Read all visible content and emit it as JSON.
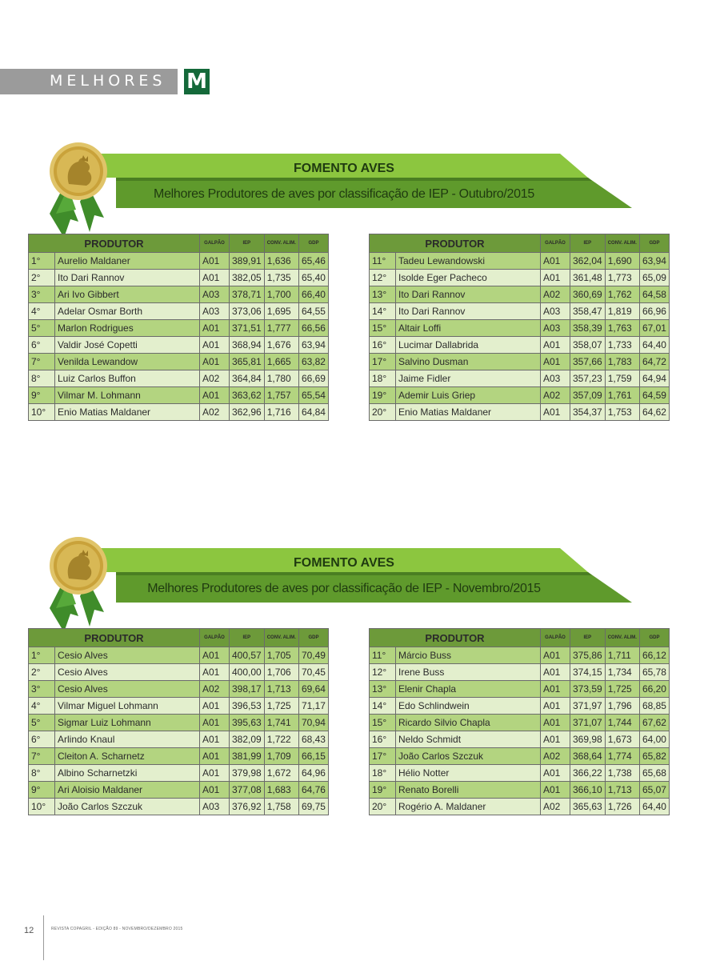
{
  "header": {
    "section_label": "MELHORES",
    "logo_letter": "M"
  },
  "colors": {
    "brand_green": "#14693a",
    "banner_light": "#8cc63f",
    "banner_dark": "#4f8a2b",
    "row_odd": "#b3d480",
    "row_even": "#e3efcd",
    "table_header": "#6d9a3a",
    "medal_gold": "#c9a23a"
  },
  "icons": {
    "medal": "medal-rooster-icon"
  },
  "columns": {
    "produtor": "PRODUTOR",
    "galpao": "GALPÃO",
    "iep": "IEP",
    "conv": "CONV. ALIM.",
    "gdp": "GDP"
  },
  "sections": [
    {
      "title": "FOMENTO AVES",
      "subtitle": "Melhores Produtores de aves por classificação de IEP - Outubro/2015",
      "left": [
        {
          "pos": "1°",
          "name": "Aurelio Maldaner",
          "galpao": "A01",
          "iep": "389,91",
          "conv": "1,636",
          "gdp": "65,46"
        },
        {
          "pos": "2°",
          "name": "Ito Dari Rannov",
          "galpao": "A01",
          "iep": "382,05",
          "conv": "1,735",
          "gdp": "65,40"
        },
        {
          "pos": "3°",
          "name": "Ari Ivo Gibbert",
          "galpao": "A03",
          "iep": "378,71",
          "conv": "1,700",
          "gdp": "66,40"
        },
        {
          "pos": "4°",
          "name": "Adelar Osmar Borth",
          "galpao": "A03",
          "iep": "373,06",
          "conv": "1,695",
          "gdp": "64,55"
        },
        {
          "pos": "5°",
          "name": "Marlon Rodrigues",
          "galpao": "A01",
          "iep": "371,51",
          "conv": "1,777",
          "gdp": "66,56"
        },
        {
          "pos": "6°",
          "name": "Valdir José Copetti",
          "galpao": "A01",
          "iep": "368,94",
          "conv": "1,676",
          "gdp": "63,94"
        },
        {
          "pos": "7°",
          "name": "Venilda Lewandow",
          "galpao": "A01",
          "iep": "365,81",
          "conv": "1,665",
          "gdp": "63,82"
        },
        {
          "pos": "8°",
          "name": "Luiz Carlos Buffon",
          "galpao": "A02",
          "iep": "364,84",
          "conv": "1,780",
          "gdp": "66,69"
        },
        {
          "pos": "9°",
          "name": "Vilmar M. Lohmann",
          "galpao": "A01",
          "iep": "363,62",
          "conv": "1,757",
          "gdp": "65,54"
        },
        {
          "pos": "10°",
          "name": "Enio Matias Maldaner",
          "galpao": "A02",
          "iep": "362,96",
          "conv": "1,716",
          "gdp": "64,84"
        }
      ],
      "right": [
        {
          "pos": "11°",
          "name": "Tadeu Lewandowski",
          "galpao": "A01",
          "iep": "362,04",
          "conv": "1,690",
          "gdp": "63,94"
        },
        {
          "pos": "12°",
          "name": "Isolde Eger Pacheco",
          "galpao": "A01",
          "iep": "361,48",
          "conv": "1,773",
          "gdp": "65,09"
        },
        {
          "pos": "13°",
          "name": "Ito Dari Rannov",
          "galpao": "A02",
          "iep": "360,69",
          "conv": "1,762",
          "gdp": "64,58"
        },
        {
          "pos": "14°",
          "name": "Ito Dari Rannov",
          "galpao": "A03",
          "iep": "358,47",
          "conv": "1,819",
          "gdp": "66,96"
        },
        {
          "pos": "15°",
          "name": "Altair Loffi",
          "galpao": "A03",
          "iep": "358,39",
          "conv": "1,763",
          "gdp": "67,01"
        },
        {
          "pos": "16°",
          "name": "Lucimar Dallabrida",
          "galpao": "A01",
          "iep": "358,07",
          "conv": "1,733",
          "gdp": "64,40"
        },
        {
          "pos": "17°",
          "name": "Salvino Dusman",
          "galpao": "A01",
          "iep": "357,66",
          "conv": "1,783",
          "gdp": "64,72"
        },
        {
          "pos": "18°",
          "name": "Jaime Fidler",
          "galpao": "A03",
          "iep": "357,23",
          "conv": "1,759",
          "gdp": "64,94"
        },
        {
          "pos": "19°",
          "name": "Ademir Luis Griep",
          "galpao": "A02",
          "iep": "357,09",
          "conv": "1,761",
          "gdp": "64,59"
        },
        {
          "pos": "20°",
          "name": "Enio Matias Maldaner",
          "galpao": "A01",
          "iep": "354,37",
          "conv": "1,753",
          "gdp": "64,62"
        }
      ]
    },
    {
      "title": "FOMENTO AVES",
      "subtitle": "Melhores Produtores de aves por classificação de IEP - Novembro/2015",
      "left": [
        {
          "pos": "1°",
          "name": "Cesio Alves",
          "galpao": "A01",
          "iep": "400,57",
          "conv": "1,705",
          "gdp": "70,49"
        },
        {
          "pos": "2°",
          "name": "Cesio Alves",
          "galpao": "A01",
          "iep": "400,00",
          "conv": "1,706",
          "gdp": "70,45"
        },
        {
          "pos": "3°",
          "name": "Cesio Alves",
          "galpao": "A02",
          "iep": "398,17",
          "conv": "1,713",
          "gdp": "69,64"
        },
        {
          "pos": "4°",
          "name": "Vilmar Miguel Lohmann",
          "galpao": "A01",
          "iep": "396,53",
          "conv": "1,725",
          "gdp": "71,17"
        },
        {
          "pos": "5°",
          "name": "Sigmar Luiz Lohmann",
          "galpao": "A01",
          "iep": "395,63",
          "conv": "1,741",
          "gdp": "70,94"
        },
        {
          "pos": "6°",
          "name": "Arlindo Knaul",
          "galpao": "A01",
          "iep": "382,09",
          "conv": "1,722",
          "gdp": "68,43"
        },
        {
          "pos": "7°",
          "name": "Cleiton A. Scharnetz",
          "galpao": "A01",
          "iep": "381,99",
          "conv": "1,709",
          "gdp": "66,15"
        },
        {
          "pos": "8°",
          "name": "Albino Scharnetzki",
          "galpao": "A01",
          "iep": "379,98",
          "conv": "1,672",
          "gdp": "64,96"
        },
        {
          "pos": "9°",
          "name": "Ari Aloisio Maldaner",
          "galpao": "A01",
          "iep": "377,08",
          "conv": "1,683",
          "gdp": "64,76"
        },
        {
          "pos": "10°",
          "name": "João Carlos Szczuk",
          "galpao": "A03",
          "iep": "376,92",
          "conv": "1,758",
          "gdp": "69,75"
        }
      ],
      "right": [
        {
          "pos": "11°",
          "name": "Márcio Buss",
          "galpao": "A01",
          "iep": "375,86",
          "conv": "1,711",
          "gdp": "66,12"
        },
        {
          "pos": "12°",
          "name": "Irene Buss",
          "galpao": "A01",
          "iep": "374,15",
          "conv": "1,734",
          "gdp": "65,78"
        },
        {
          "pos": "13°",
          "name": "Elenir Chapla",
          "galpao": "A01",
          "iep": "373,59",
          "conv": "1,725",
          "gdp": "66,20"
        },
        {
          "pos": "14°",
          "name": "Edo Schlindwein",
          "galpao": "A01",
          "iep": "371,97",
          "conv": "1,796",
          "gdp": "68,85"
        },
        {
          "pos": "15°",
          "name": "Ricardo Silvio Chapla",
          "galpao": "A01",
          "iep": "371,07",
          "conv": "1,744",
          "gdp": "67,62"
        },
        {
          "pos": "16°",
          "name": "Neldo Schmidt",
          "galpao": "A01",
          "iep": "369,98",
          "conv": "1,673",
          "gdp": "64,00"
        },
        {
          "pos": "17°",
          "name": "João Carlos Szczuk",
          "galpao": "A02",
          "iep": "368,64",
          "conv": "1,774",
          "gdp": "65,82"
        },
        {
          "pos": "18°",
          "name": "Hélio Notter",
          "galpao": "A01",
          "iep": "366,22",
          "conv": "1,738",
          "gdp": "65,68"
        },
        {
          "pos": "19°",
          "name": "Renato Borelli",
          "galpao": "A01",
          "iep": "366,10",
          "conv": "1,713",
          "gdp": "65,07"
        },
        {
          "pos": "20°",
          "name": "Rogério A. Maldaner",
          "galpao": "A02",
          "iep": "365,63",
          "conv": "1,726",
          "gdp": "64,40"
        }
      ]
    }
  ],
  "footer": {
    "page_number": "12",
    "publication": "REVISTA COPAGRIL - EDIÇÃO 89 - NOVEMBRO/DEZEMBRO 2015"
  }
}
